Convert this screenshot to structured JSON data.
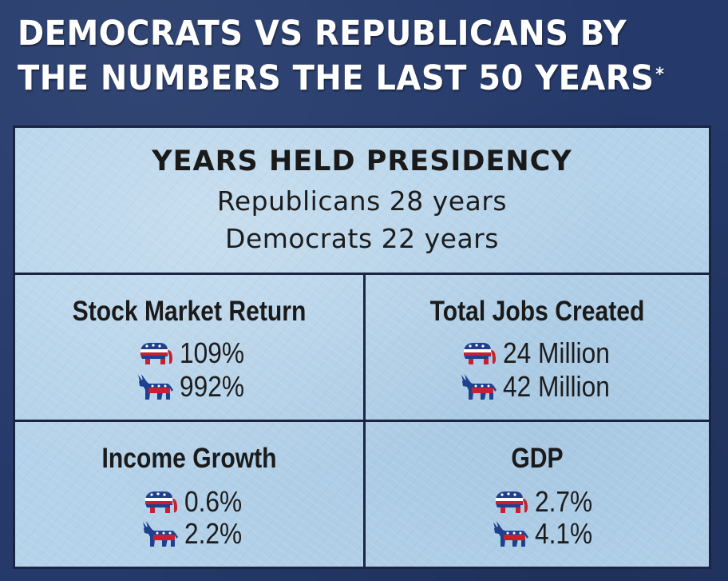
{
  "title": {
    "line1": "DEMOCRATS VS REPUBLICANS BY",
    "line2": "THE NUMBERS THE LAST 50 YEARS",
    "footnote_mark": "*"
  },
  "presidency": {
    "heading": "YEARS HELD PRESIDENCY",
    "republicans": "Republicans 28 years",
    "democrats": "Democrats 22 years"
  },
  "stats": {
    "stock_market": {
      "heading": "Stock Market Return",
      "republican_value": "109%",
      "democrat_value": "992%"
    },
    "jobs": {
      "heading": "Total Jobs Created",
      "republican_value": "24 Million",
      "democrat_value": "42 Million"
    },
    "income": {
      "heading": "Income Growth",
      "republican_value": "0.6%",
      "democrat_value": "2.2%"
    },
    "gdp": {
      "heading": "GDP",
      "republican_value": "2.7%",
      "democrat_value": "4.1%"
    }
  },
  "icons": {
    "republican": "republican-elephant-icon",
    "democrat": "democrat-donkey-icon"
  },
  "colors": {
    "background": "#253a6b",
    "panel": "#b4d2e9",
    "grid_lines": "#1a2544",
    "title_text": "#ffffff",
    "body_text": "#1a1a1a",
    "party_red": "#c8202f",
    "party_blue": "#1f3f8f"
  }
}
